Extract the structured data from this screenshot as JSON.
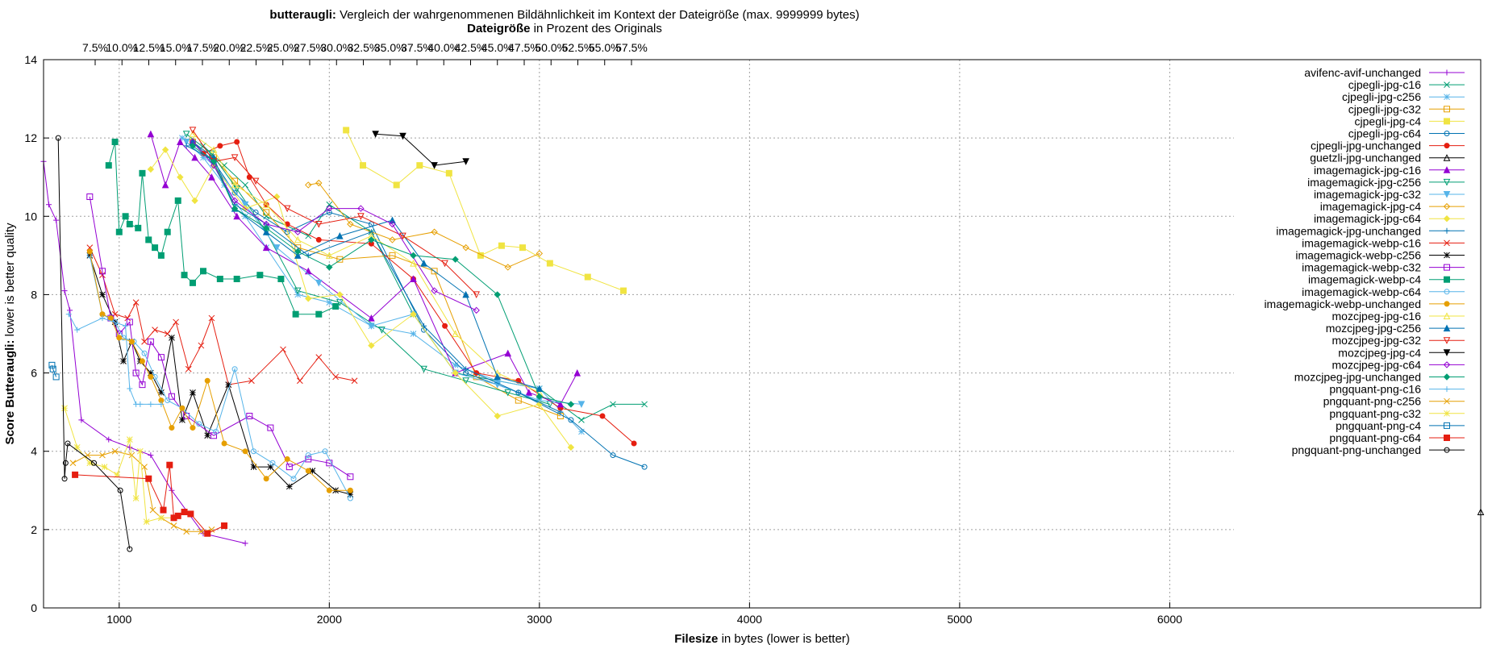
{
  "chart_data": {
    "type": "line",
    "title": {
      "bold": "butteraugli:",
      "rest": " Vergleich der wahrgenommenen Bildähnlichkeit im Kontext der Dateigröße (max. 9999999 bytes)"
    },
    "subtitle": {
      "bold": "Dateigröße",
      "rest": " in Prozent des Originals"
    },
    "xlabel": {
      "bold": "Filesize",
      "rest": " in bytes (lower is better)"
    },
    "ylabel": {
      "bold": "Score Butteraugli:",
      "rest": " lower is better quality"
    },
    "xlim": [
      640,
      7480
    ],
    "ylim": [
      0,
      14
    ],
    "grid": true,
    "legend_position": "right",
    "x_ticks": [
      "1000",
      "2000",
      "3000",
      "4000",
      "5000",
      "6000"
    ],
    "y_ticks": [
      "0",
      "2",
      "4",
      "6",
      "8",
      "10",
      "12",
      "14"
    ],
    "x2_ticks": [
      "7.5%",
      "10.0%",
      "12.5%",
      "15.0%",
      "17.5%",
      "20.0%",
      "22.5%",
      "25.0%",
      "27.5%",
      "30.0%",
      "32.5%",
      "35.0%",
      "37.5%",
      "40.0%",
      "42.5%",
      "45.0%",
      "47.5%",
      "50.0%",
      "52.5%",
      "55.0%",
      "57.5%"
    ],
    "series": [
      {
        "name": "avifenc-avif-unchanged",
        "color": "#9400d3",
        "marker": "plus",
        "x": [
          640,
          665,
          700,
          740,
          765,
          820,
          950,
          1050,
          1150,
          1250,
          1400,
          1600
        ],
        "y": [
          11.4,
          10.3,
          9.9,
          8.1,
          7.6,
          4.8,
          4.3,
          4.1,
          3.9,
          3.0,
          1.9,
          1.65
        ]
      },
      {
        "name": "cjpegli-jpg-c16",
        "color": "#009e73",
        "marker": "x",
        "x": [
          1400,
          1500,
          1600,
          1700,
          1900,
          2000,
          2200,
          2400,
          2600,
          2800,
          3000,
          3200,
          3350,
          3500
        ],
        "y": [
          11.8,
          11.3,
          10.8,
          10.0,
          9.5,
          10.3,
          9.6,
          7.5,
          6.0,
          5.8,
          5.6,
          4.8,
          5.2,
          5.2
        ]
      },
      {
        "name": "cjpegli-jpg-c256",
        "color": "#56b4e9",
        "marker": "star",
        "x": [
          1300,
          1400,
          1500,
          1600,
          1700,
          1850,
          2000,
          2200,
          2400,
          2600,
          2800,
          3000,
          3200
        ],
        "y": [
          12.0,
          11.5,
          10.8,
          10.0,
          9.2,
          8.0,
          7.8,
          7.2,
          7.0,
          6.2,
          5.8,
          5.6,
          4.5
        ]
      },
      {
        "name": "cjpegli-jpg-c32",
        "color": "#e69f00",
        "marker": "square",
        "x": [
          1350,
          1450,
          1550,
          1700,
          1850,
          2050,
          2300,
          2500,
          2700,
          2900,
          3100
        ],
        "y": [
          11.9,
          11.5,
          10.9,
          10.1,
          9.2,
          8.9,
          9.0,
          8.6,
          5.9,
          5.3,
          4.9
        ]
      },
      {
        "name": "cjpegli-jpg-c4",
        "color": "#f0e442",
        "marker": "square-filled",
        "x": [
          2080,
          2160,
          2320,
          2430,
          2570,
          2720,
          2820,
          2920,
          3050,
          3230,
          3400
        ],
        "y": [
          12.2,
          11.3,
          10.8,
          11.3,
          11.1,
          9.0,
          9.25,
          9.2,
          8.8,
          8.45,
          8.1
        ]
      },
      {
        "name": "cjpegli-jpg-c64",
        "color": "#0072b2",
        "marker": "circle",
        "x": [
          1350,
          1450,
          1550,
          1650,
          1800,
          2000,
          2200,
          2450,
          2650,
          2900,
          3150,
          3350,
          3500
        ],
        "y": [
          11.9,
          11.4,
          10.6,
          10.1,
          9.6,
          10.1,
          9.8,
          7.1,
          6.0,
          5.5,
          4.8,
          3.9,
          3.6
        ]
      },
      {
        "name": "cjpegli-jpg-unchanged",
        "color": "#e51e10",
        "marker": "circle-filled",
        "x": [
          1400,
          1480,
          1560,
          1620,
          1700,
          1800,
          1950,
          2200,
          2400,
          2550,
          2700,
          2900,
          3100,
          3300,
          3450
        ],
        "y": [
          11.6,
          11.8,
          11.9,
          11.0,
          10.3,
          9.8,
          9.4,
          9.3,
          8.4,
          7.2,
          6.0,
          5.8,
          5.1,
          4.9,
          4.2
        ]
      },
      {
        "name": "guetzli-jpg-unchanged",
        "color": "#000000",
        "marker": "triangle",
        "x": [
          7480
        ],
        "y": [
          2.45
        ]
      },
      {
        "name": "imagemagick-jpg-c16",
        "color": "#9400d3",
        "marker": "triangle-filled",
        "x": [
          1150,
          1220,
          1290,
          1360,
          1440,
          1560,
          1700,
          1900,
          2200,
          2400,
          2600,
          2850,
          2950,
          3100,
          3180
        ],
        "y": [
          12.1,
          10.8,
          11.9,
          11.5,
          11.0,
          10.0,
          9.2,
          8.6,
          7.4,
          8.4,
          6.0,
          6.5,
          5.5,
          5.2,
          6.0
        ]
      },
      {
        "name": "imagemagick-jpg-c256",
        "color": "#009e73",
        "marker": "triangle-down",
        "x": [
          1320,
          1440,
          1560,
          1700,
          1850,
          2050,
          2250,
          2450,
          2650,
          2850,
          3050
        ],
        "y": [
          12.1,
          11.6,
          10.7,
          9.6,
          8.1,
          7.8,
          7.1,
          6.1,
          5.8,
          5.5,
          5.2
        ]
      },
      {
        "name": "imagemagick-jpg-c32",
        "color": "#56b4e9",
        "marker": "triangle-down-filled",
        "x": [
          1320,
          1450,
          1600,
          1750,
          1950,
          2200,
          2400,
          2600,
          2800,
          3000,
          3200
        ],
        "y": [
          11.9,
          11.3,
          10.3,
          9.2,
          8.3,
          7.2,
          7.5,
          6.0,
          5.7,
          5.3,
          5.2
        ]
      },
      {
        "name": "imagemagick-jpg-c4",
        "color": "#e69f00",
        "marker": "diamond",
        "x": [
          1900,
          1950,
          2100,
          2300,
          2500,
          2650,
          2850,
          3000
        ],
        "y": [
          10.8,
          10.85,
          9.8,
          9.4,
          9.6,
          9.2,
          8.7,
          9.05
        ]
      },
      {
        "name": "imagemagick-jpg-c64",
        "color": "#f0e442",
        "marker": "diamond-filled",
        "x": [
          1150,
          1220,
          1290,
          1360,
          1450,
          1600,
          1750,
          1900,
          2050,
          2200,
          2400,
          2600,
          2800,
          3000,
          3150
        ],
        "y": [
          11.2,
          11.7,
          11.0,
          10.4,
          11.3,
          10.2,
          10.5,
          7.9,
          8.0,
          6.7,
          7.5,
          6.0,
          4.9,
          5.2,
          4.1
        ]
      },
      {
        "name": "imagemagick-jpg-unchanged",
        "color": "#0072b2",
        "marker": "plus",
        "x": [
          1320,
          1430,
          1550,
          1700,
          1900,
          2200,
          2450,
          2650,
          2900,
          3100
        ],
        "y": [
          11.8,
          11.5,
          10.3,
          9.8,
          9.0,
          9.6,
          7.2,
          6.1,
          5.5,
          5.0
        ]
      },
      {
        "name": "imagemagick-webp-c16",
        "color": "#e51e10",
        "marker": "x",
        "x": [
          860,
          920,
          980,
          1040,
          1080,
          1120,
          1170,
          1230,
          1270,
          1330,
          1390,
          1440,
          1520,
          1630,
          1780,
          1860,
          1950,
          2030,
          2120
        ],
        "y": [
          9.2,
          8.5,
          7.5,
          7.4,
          7.8,
          6.8,
          7.1,
          7.0,
          7.3,
          6.1,
          6.7,
          7.4,
          5.7,
          5.8,
          6.6,
          5.8,
          6.4,
          5.9,
          5.8
        ]
      },
      {
        "name": "imagemagick-webp-c256",
        "color": "#000000",
        "marker": "star",
        "x": [
          860,
          920,
          980,
          1020,
          1060,
          1100,
          1150,
          1200,
          1250,
          1300,
          1350,
          1420,
          1520,
          1640,
          1720,
          1810,
          1920,
          2030,
          2100
        ],
        "y": [
          9.0,
          8.0,
          7.3,
          6.3,
          6.8,
          6.3,
          6.0,
          5.5,
          6.9,
          4.8,
          5.5,
          4.4,
          5.7,
          3.6,
          3.6,
          3.1,
          3.5,
          3.0,
          2.9
        ]
      },
      {
        "name": "imagemagick-webp-c32",
        "color": "#9400d3",
        "marker": "square",
        "x": [
          860,
          920,
          960,
          1000,
          1050,
          1080,
          1110,
          1150,
          1200,
          1250,
          1320,
          1450,
          1620,
          1720,
          1810,
          1900,
          2000,
          2100
        ],
        "y": [
          10.5,
          8.6,
          7.4,
          7.0,
          7.3,
          6.0,
          5.7,
          6.8,
          6.4,
          5.4,
          4.9,
          4.4,
          4.9,
          4.6,
          3.6,
          3.8,
          3.7,
          3.35
        ]
      },
      {
        "name": "imagemagick-webp-c4",
        "color": "#009e73",
        "marker": "square-filled",
        "x": [
          950,
          980,
          1000,
          1030,
          1050,
          1090,
          1110,
          1140,
          1170,
          1200,
          1230,
          1280,
          1310,
          1350,
          1400,
          1480,
          1560,
          1670,
          1770,
          1840,
          1950,
          2030
        ],
        "y": [
          11.3,
          11.9,
          9.6,
          10.0,
          9.8,
          9.7,
          11.1,
          9.4,
          9.2,
          9.0,
          9.6,
          10.4,
          8.5,
          8.3,
          8.6,
          8.4,
          8.4,
          8.5,
          8.4,
          7.5,
          7.5,
          7.7
        ]
      },
      {
        "name": "imagemagick-webp-c64",
        "color": "#56b4e9",
        "marker": "circle",
        "x": [
          860,
          920,
          980,
          1020,
          1070,
          1120,
          1170,
          1230,
          1300,
          1380,
          1460,
          1550,
          1640,
          1730,
          1830,
          1900,
          1980,
          2100
        ],
        "y": [
          9.0,
          7.5,
          7.3,
          6.9,
          6.8,
          6.5,
          5.9,
          5.3,
          5.1,
          4.7,
          4.5,
          6.1,
          4.0,
          3.7,
          3.3,
          3.9,
          4.0,
          2.8
        ]
      },
      {
        "name": "imagemagick-webp-unchanged",
        "color": "#e69f00",
        "marker": "circle-filled",
        "x": [
          860,
          920,
          960,
          1000,
          1060,
          1110,
          1150,
          1200,
          1250,
          1300,
          1350,
          1420,
          1500,
          1600,
          1700,
          1800,
          1900,
          2000,
          2100
        ],
        "y": [
          9.1,
          7.5,
          7.4,
          6.9,
          6.8,
          6.3,
          5.9,
          5.3,
          4.6,
          5.1,
          4.6,
          5.8,
          4.2,
          4.0,
          3.3,
          3.8,
          3.5,
          3.0,
          3.0
        ]
      },
      {
        "name": "mozcjpeg-jpg-c16",
        "color": "#f0e442",
        "marker": "triangle",
        "x": [
          1350,
          1450,
          1550,
          1700,
          1850,
          2000,
          2200,
          2400,
          2600,
          2800,
          3000
        ],
        "y": [
          12.1,
          11.7,
          10.8,
          10.3,
          9.4,
          9.0,
          9.5,
          8.8,
          7.0,
          6.0,
          5.5
        ]
      },
      {
        "name": "mozcjpeg-jpg-c256",
        "color": "#0072b2",
        "marker": "triangle-filled",
        "x": [
          1350,
          1450,
          1550,
          1700,
          1850,
          2050,
          2300,
          2450,
          2650,
          2800,
          3000
        ],
        "y": [
          11.9,
          11.5,
          10.2,
          9.6,
          9.0,
          9.5,
          9.9,
          8.8,
          8.0,
          5.9,
          5.6
        ]
      },
      {
        "name": "mozcjpeg-jpg-c32",
        "color": "#e51e10",
        "marker": "triangle-down",
        "x": [
          1350,
          1450,
          1550,
          1650,
          1800,
          1950,
          2150,
          2350,
          2550,
          2700
        ],
        "y": [
          12.2,
          11.4,
          11.5,
          10.9,
          10.2,
          9.8,
          10.0,
          9.5,
          8.8,
          8.0
        ]
      },
      {
        "name": "mozcjpeg-jpg-c4",
        "color": "#000000",
        "marker": "triangle-down-filled",
        "x": [
          2220,
          2350,
          2500,
          2650
        ],
        "y": [
          12.1,
          12.05,
          11.3,
          11.4
        ]
      },
      {
        "name": "mozcjpeg-jpg-c64",
        "color": "#9400d3",
        "marker": "diamond",
        "x": [
          1350,
          1450,
          1550,
          1700,
          1850,
          2000,
          2150,
          2300,
          2500,
          2700
        ],
        "y": [
          11.9,
          11.3,
          10.4,
          9.8,
          9.6,
          10.2,
          10.2,
          9.8,
          8.1,
          7.6
        ]
      },
      {
        "name": "mozcjpeg-jpg-unchanged",
        "color": "#009e73",
        "marker": "diamond-filled",
        "x": [
          1350,
          1450,
          1550,
          1700,
          1850,
          2000,
          2200,
          2400,
          2600,
          2800,
          3000,
          3150
        ],
        "y": [
          11.8,
          11.4,
          10.2,
          9.7,
          9.1,
          8.7,
          9.4,
          9.0,
          8.9,
          8.0,
          5.4,
          5.2
        ]
      },
      {
        "name": "pngquant-png-c16",
        "color": "#56b4e9",
        "marker": "plus",
        "x": [
          760,
          800,
          920,
          1030,
          1050,
          1080,
          1100,
          1150,
          1200
        ],
        "y": [
          7.5,
          7.1,
          7.4,
          7.2,
          5.6,
          5.2,
          5.2,
          5.2,
          5.2
        ]
      },
      {
        "name": "pngquant-png-c256",
        "color": "#e69f00",
        "marker": "x",
        "x": [
          780,
          850,
          920,
          980,
          1060,
          1120,
          1160,
          1200,
          1260,
          1320,
          1390,
          1440
        ],
        "y": [
          3.7,
          3.9,
          3.9,
          4.0,
          3.9,
          3.6,
          2.5,
          2.3,
          2.1,
          1.95,
          1.95,
          2.0
        ]
      },
      {
        "name": "pngquant-png-c32",
        "color": "#f0e442",
        "marker": "star",
        "x": [
          740,
          800,
          860,
          930,
          990,
          1050,
          1080,
          1100,
          1130,
          1200,
          1260
        ],
        "y": [
          5.1,
          4.1,
          3.7,
          3.6,
          3.4,
          4.3,
          2.8,
          4.0,
          2.2,
          2.3,
          2.3
        ]
      },
      {
        "name": "pngquant-png-c4",
        "color": "#0072b2",
        "marker": "square",
        "x": [
          680,
          685,
          700
        ],
        "y": [
          6.2,
          6.1,
          5.9
        ]
      },
      {
        "name": "pngquant-png-c64",
        "color": "#e51e10",
        "marker": "square-filled",
        "x": [
          790,
          1140,
          1210,
          1240,
          1260,
          1280,
          1310,
          1340,
          1420,
          1500
        ],
        "y": [
          3.4,
          3.3,
          2.5,
          3.65,
          2.3,
          2.35,
          2.45,
          2.4,
          1.9,
          2.1
        ]
      },
      {
        "name": "pngquant-png-unchanged",
        "color": "#000000",
        "marker": "circle",
        "x": [
          710,
          740,
          745,
          755,
          880,
          1005,
          1050
        ],
        "y": [
          12.0,
          3.3,
          3.7,
          4.2,
          3.7,
          3.0,
          1.5
        ]
      }
    ]
  }
}
